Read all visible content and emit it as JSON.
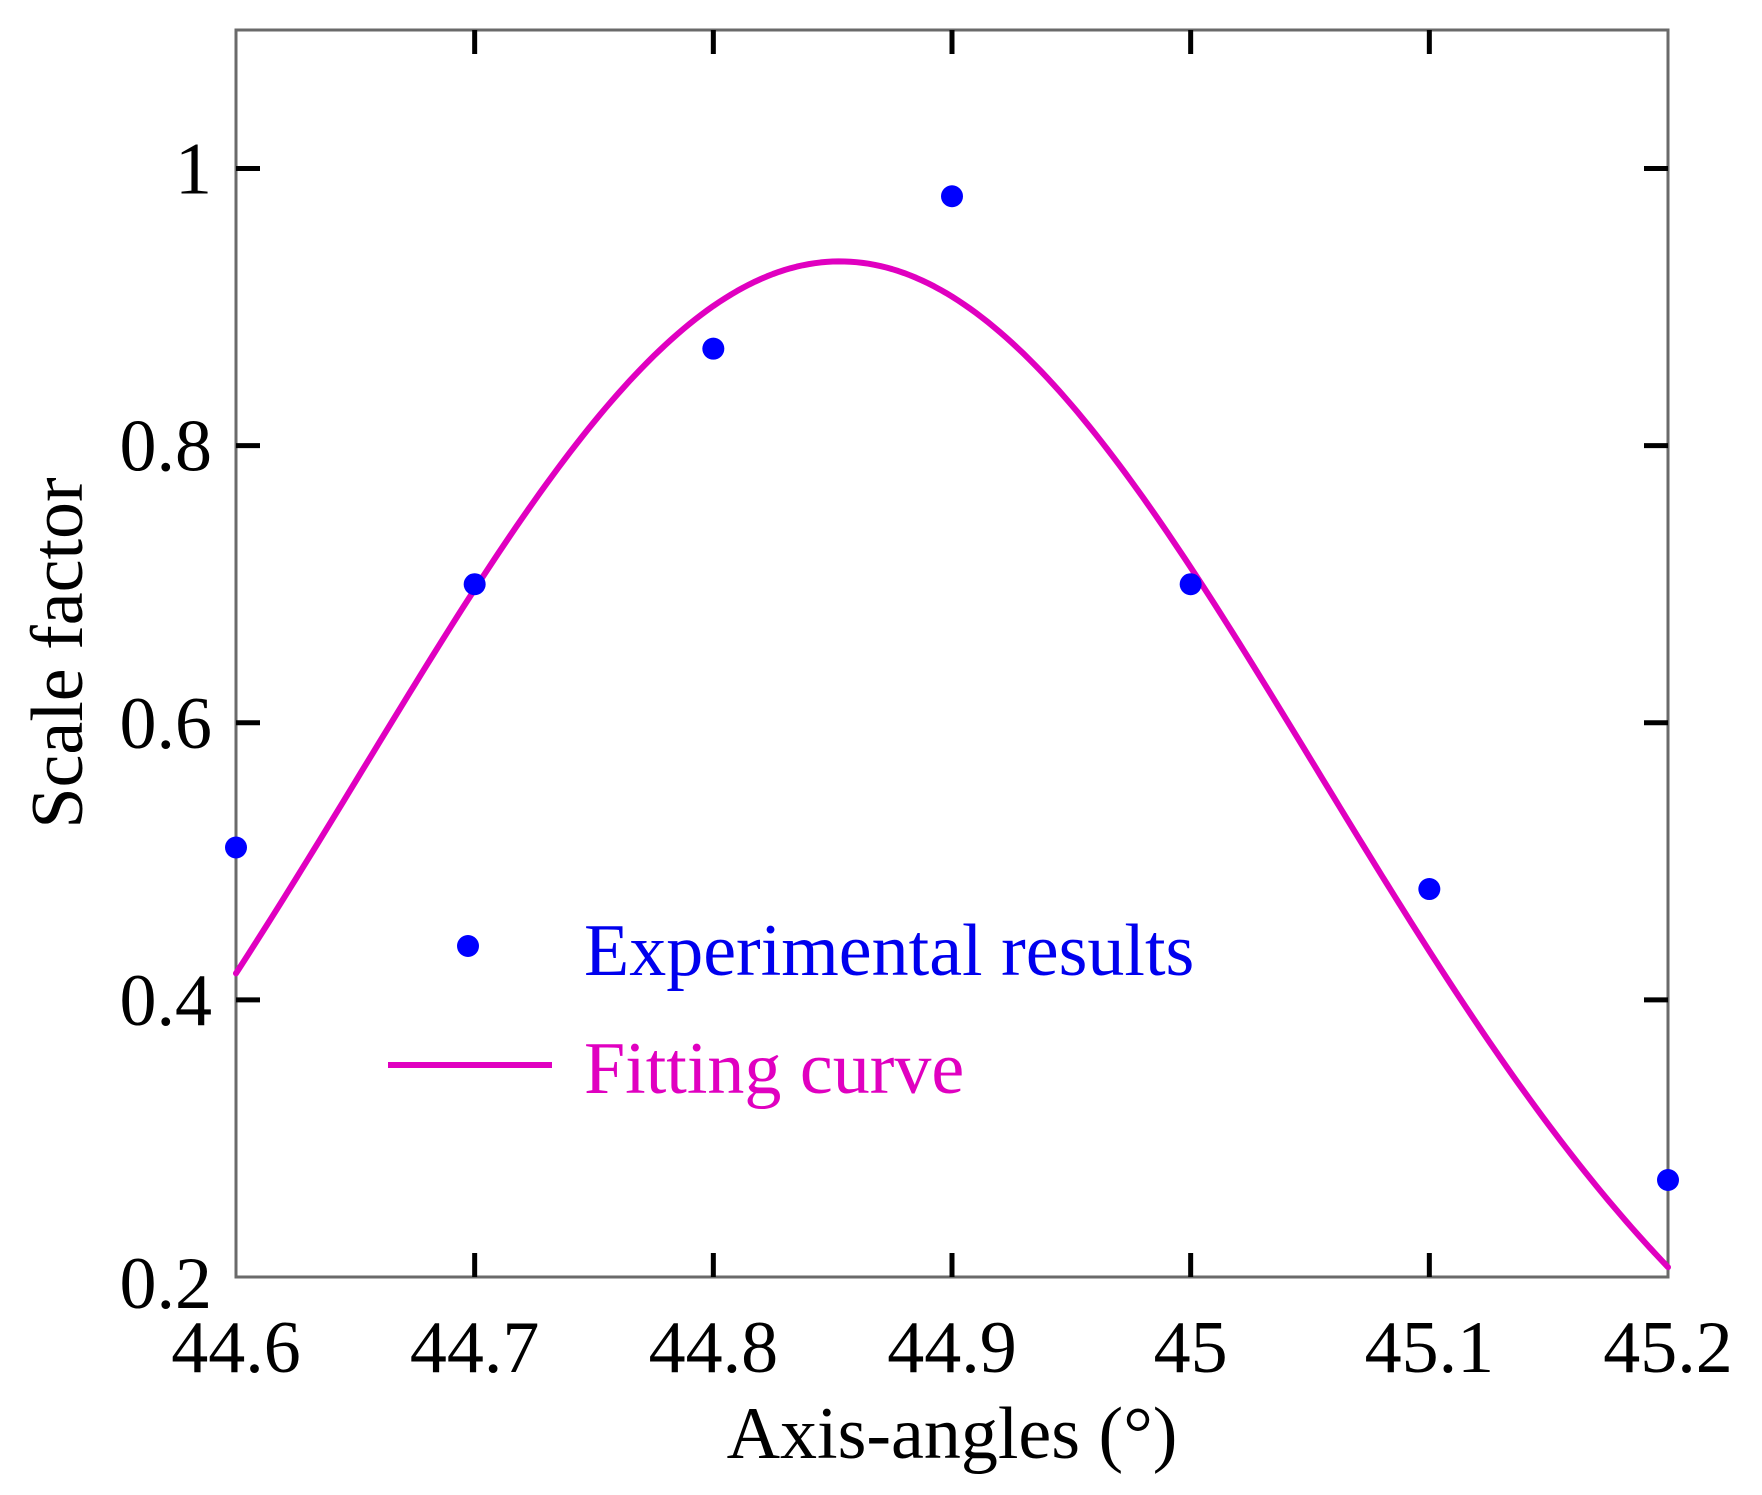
{
  "chart_data": {
    "type": "scatter",
    "title": "",
    "xlabel": "Axis-angles (°)",
    "ylabel": "Scale factor",
    "xlim": [
      44.6,
      45.2
    ],
    "ylim": [
      0.2,
      1.1
    ],
    "x_ticks": [
      44.6,
      44.7,
      44.8,
      44.9,
      45.0,
      45.1,
      45.2
    ],
    "x_tick_labels": [
      "44.6",
      "44.7",
      "44.8",
      "44.9",
      "45",
      "45.1",
      "45.2"
    ],
    "y_ticks": [
      0.2,
      0.4,
      0.6,
      0.8,
      1.0
    ],
    "y_tick_labels": [
      "0.2",
      "0.4",
      "0.6",
      "0.8",
      "1"
    ],
    "grid": false,
    "legend_position": "bottom-center",
    "series": [
      {
        "name": "Experimental results",
        "kind": "scatter",
        "color": "#0000ff",
        "x": [
          44.6,
          44.7,
          44.8,
          44.9,
          45.0,
          45.1,
          45.2
        ],
        "y": [
          0.51,
          0.7,
          0.87,
          0.98,
          0.7,
          0.48,
          0.27
        ]
      },
      {
        "name": "Fitting curve",
        "kind": "line",
        "color": "#e000c0",
        "model": "gaussian",
        "amplitude": 0.933,
        "center": 44.853,
        "sigma": 0.2
      }
    ]
  }
}
